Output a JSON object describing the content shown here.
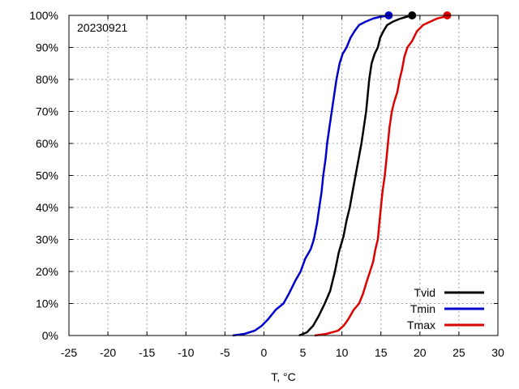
{
  "chart_data": {
    "type": "line",
    "annotation": "20230921",
    "xlabel": "T, °C",
    "ylabel": "",
    "xlim": [
      -25,
      30
    ],
    "ylim": [
      0,
      100
    ],
    "x_ticks": [
      "-25",
      "-20",
      "-15",
      "-10",
      "-5",
      "0",
      "5",
      "10",
      "15",
      "20",
      "25",
      "30"
    ],
    "y_ticks": [
      "0%",
      "10%",
      "20%",
      "30%",
      "40%",
      "50%",
      "60%",
      "70%",
      "80%",
      "90%",
      "100%"
    ],
    "grid": true,
    "legend_position": "bottom-right",
    "series": [
      {
        "name": "Tvid",
        "color": "#000000",
        "marker_end": true,
        "points": [
          [
            4.5,
            0
          ],
          [
            5.5,
            1
          ],
          [
            6.3,
            3
          ],
          [
            7,
            6
          ],
          [
            7.8,
            10
          ],
          [
            8.5,
            14
          ],
          [
            9.1,
            20
          ],
          [
            9.6,
            26
          ],
          [
            10.2,
            31
          ],
          [
            10.6,
            36
          ],
          [
            11,
            40
          ],
          [
            11.3,
            44
          ],
          [
            11.6,
            48
          ],
          [
            11.9,
            52
          ],
          [
            12.2,
            56
          ],
          [
            12.5,
            60
          ],
          [
            12.8,
            65
          ],
          [
            13.1,
            70
          ],
          [
            13.3,
            75
          ],
          [
            13.5,
            80
          ],
          [
            13.8,
            85
          ],
          [
            14.2,
            88
          ],
          [
            14.6,
            90
          ],
          [
            14.9,
            93
          ],
          [
            15.3,
            95
          ],
          [
            15.8,
            97
          ],
          [
            16.5,
            98
          ],
          [
            17.5,
            99
          ],
          [
            18.2,
            99.5
          ],
          [
            19,
            100
          ]
        ]
      },
      {
        "name": "Tmin",
        "color": "#0000cc",
        "marker_end": true,
        "points": [
          [
            -4,
            0
          ],
          [
            -2.5,
            0.5
          ],
          [
            -1.2,
            1.5
          ],
          [
            -0.3,
            3
          ],
          [
            0.5,
            5
          ],
          [
            1.5,
            8
          ],
          [
            2.5,
            10
          ],
          [
            3.2,
            13
          ],
          [
            4,
            17
          ],
          [
            4.7,
            20
          ],
          [
            5.3,
            24
          ],
          [
            6,
            27
          ],
          [
            6.4,
            30
          ],
          [
            6.8,
            35
          ],
          [
            7.1,
            40
          ],
          [
            7.4,
            45
          ],
          [
            7.6,
            50
          ],
          [
            7.9,
            55
          ],
          [
            8.1,
            60
          ],
          [
            8.4,
            65
          ],
          [
            8.7,
            70
          ],
          [
            9,
            75
          ],
          [
            9.3,
            80
          ],
          [
            9.7,
            85
          ],
          [
            10.1,
            88
          ],
          [
            10.6,
            90
          ],
          [
            11.1,
            93
          ],
          [
            11.6,
            95
          ],
          [
            12.2,
            97
          ],
          [
            13,
            98
          ],
          [
            14,
            99
          ],
          [
            14.8,
            99.5
          ],
          [
            16,
            100
          ]
        ]
      },
      {
        "name": "Tmax",
        "color": "#dd0000",
        "marker_end": true,
        "points": [
          [
            6.5,
            0
          ],
          [
            8,
            0.5
          ],
          [
            9.5,
            1.5
          ],
          [
            10.2,
            3
          ],
          [
            10.8,
            5
          ],
          [
            11.5,
            8
          ],
          [
            12.2,
            10
          ],
          [
            12.7,
            13
          ],
          [
            13.2,
            17
          ],
          [
            13.6,
            20
          ],
          [
            14,
            23
          ],
          [
            14.3,
            27
          ],
          [
            14.6,
            30
          ],
          [
            14.8,
            35
          ],
          [
            15,
            40
          ],
          [
            15.2,
            45
          ],
          [
            15.5,
            50
          ],
          [
            15.7,
            55
          ],
          [
            15.9,
            60
          ],
          [
            16.1,
            65
          ],
          [
            16.4,
            70
          ],
          [
            16.7,
            73
          ],
          [
            17.1,
            76
          ],
          [
            17.4,
            80
          ],
          [
            17.7,
            83
          ],
          [
            18,
            87
          ],
          [
            18.4,
            90
          ],
          [
            19,
            92
          ],
          [
            19.6,
            95
          ],
          [
            20.4,
            97
          ],
          [
            21.3,
            98
          ],
          [
            22.2,
            99
          ],
          [
            23,
            99.5
          ],
          [
            23.5,
            100
          ]
        ]
      }
    ]
  }
}
